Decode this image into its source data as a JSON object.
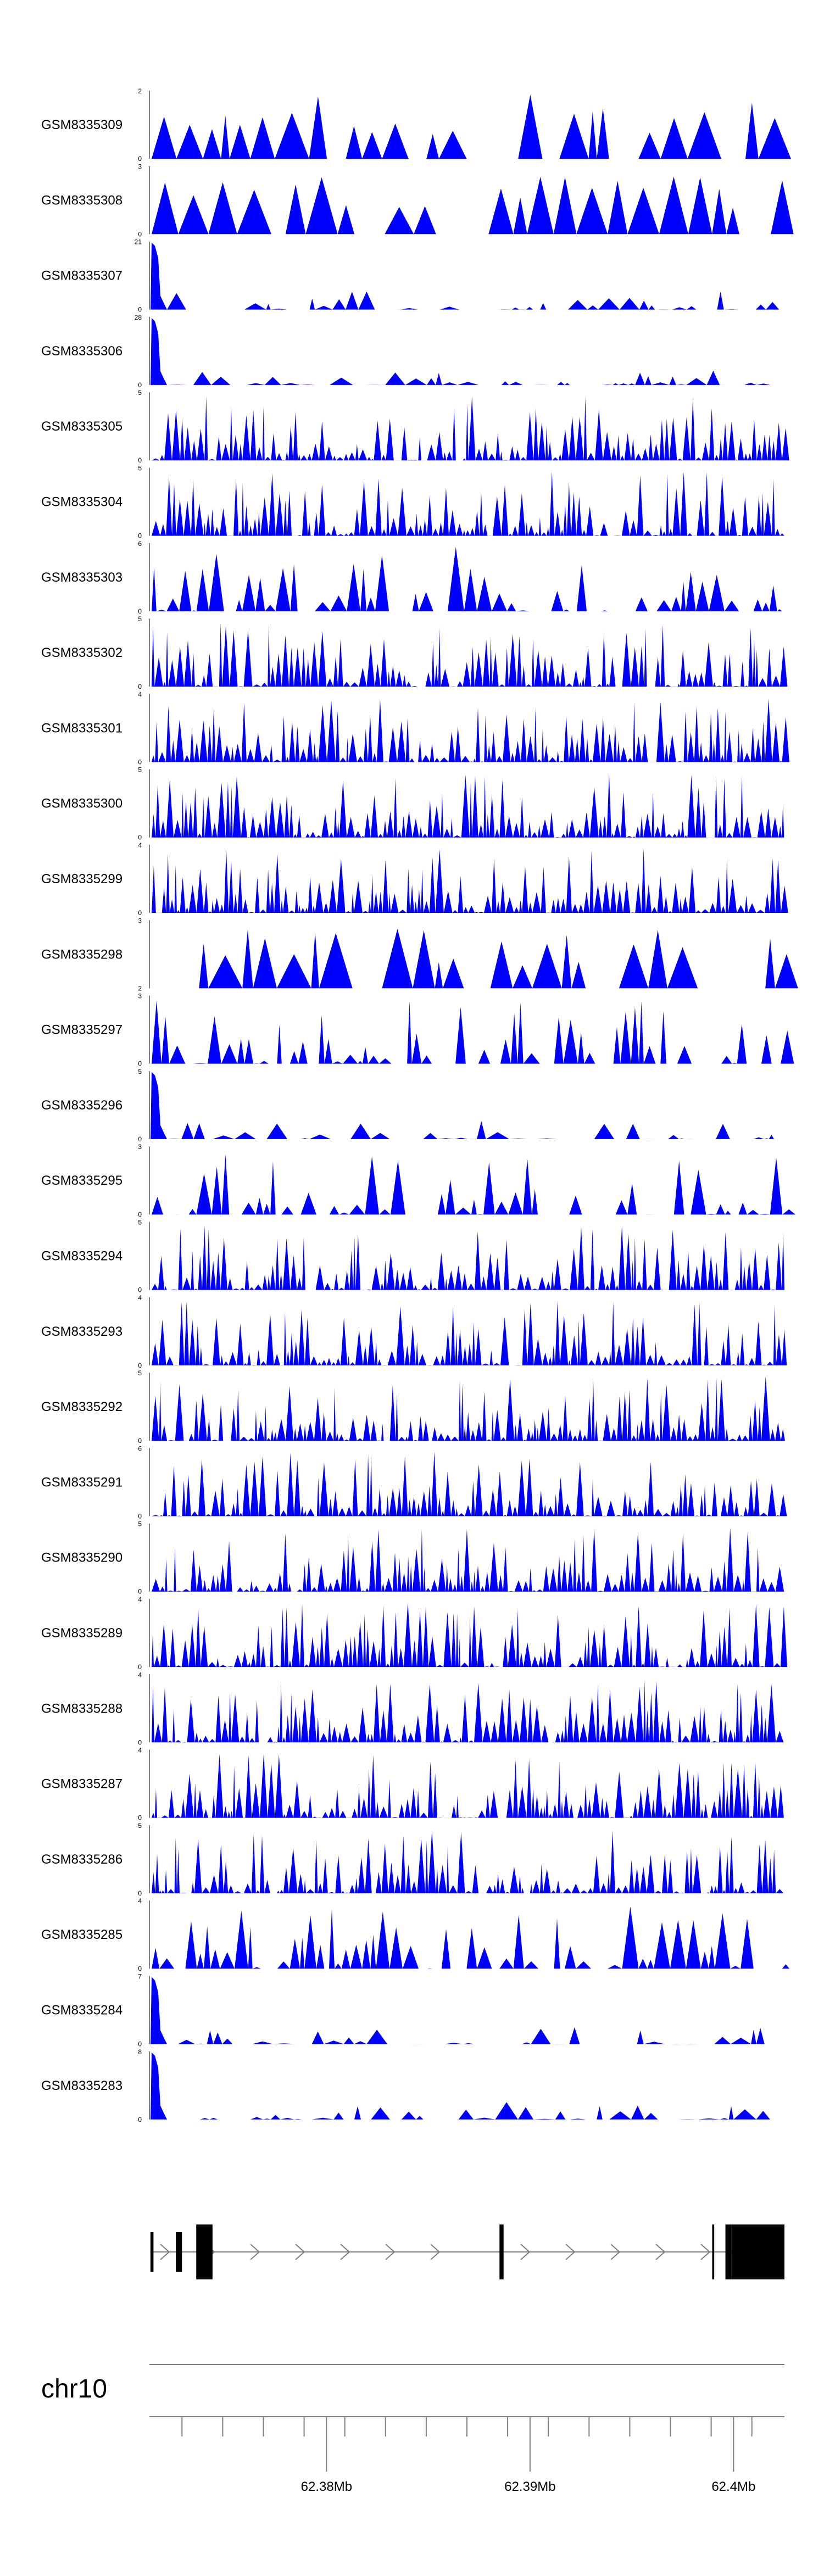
{
  "chart_data": {
    "type": "area",
    "title": "",
    "chromosome": "chr10",
    "xlim_mb": [
      62.3713,
      62.4025
    ],
    "fill_color": "#0000ff",
    "tracks": [
      {
        "name": "GSM8335309",
        "ymax": "2",
        "ymin": "0",
        "profile": "sparse"
      },
      {
        "name": "GSM8335308",
        "ymax": "3",
        "ymin": "0",
        "profile": "sparse"
      },
      {
        "name": "GSM8335307",
        "ymax": "21",
        "ymin": "0",
        "profile": "peak"
      },
      {
        "name": "GSM8335306",
        "ymax": "28",
        "ymin": "0",
        "profile": "peak"
      },
      {
        "name": "GSM8335305",
        "ymax": "5",
        "ymin": "0",
        "profile": "dense"
      },
      {
        "name": "GSM8335304",
        "ymax": "5",
        "ymin": "0",
        "profile": "dense"
      },
      {
        "name": "GSM8335303",
        "ymax": "6",
        "ymin": "0",
        "profile": "medium"
      },
      {
        "name": "GSM8335302",
        "ymax": "5",
        "ymin": "0",
        "profile": "dense"
      },
      {
        "name": "GSM8335301",
        "ymax": "4",
        "ymin": "0",
        "profile": "dense"
      },
      {
        "name": "GSM8335300",
        "ymax": "5",
        "ymin": "0",
        "profile": "dense"
      },
      {
        "name": "GSM8335299",
        "ymax": "4",
        "ymin": "0",
        "profile": "dense"
      },
      {
        "name": "GSM8335298",
        "ymax": "3",
        "ymin": "2",
        "profile": "sparse"
      },
      {
        "name": "GSM8335297",
        "ymax": "3",
        "ymin": "0",
        "profile": "medium"
      },
      {
        "name": "GSM8335296",
        "ymax": "5",
        "ymin": "0",
        "profile": "peak"
      },
      {
        "name": "GSM8335295",
        "ymax": "3",
        "ymin": "0",
        "profile": "medium"
      },
      {
        "name": "GSM8335294",
        "ymax": "5",
        "ymin": "0",
        "profile": "dense"
      },
      {
        "name": "GSM8335293",
        "ymax": "4",
        "ymin": "0",
        "profile": "dense"
      },
      {
        "name": "GSM8335292",
        "ymax": "5",
        "ymin": "0",
        "profile": "dense"
      },
      {
        "name": "GSM8335291",
        "ymax": "6",
        "ymin": "0",
        "profile": "dense"
      },
      {
        "name": "GSM8335290",
        "ymax": "5",
        "ymin": "0",
        "profile": "dense"
      },
      {
        "name": "GSM8335289",
        "ymax": "4",
        "ymin": "0",
        "profile": "dense"
      },
      {
        "name": "GSM8335288",
        "ymax": "4",
        "ymin": "0",
        "profile": "dense"
      },
      {
        "name": "GSM8335287",
        "ymax": "4",
        "ymin": "0",
        "profile": "dense"
      },
      {
        "name": "GSM8335286",
        "ymax": "5",
        "ymin": "0",
        "profile": "dense"
      },
      {
        "name": "GSM8335285",
        "ymax": "4",
        "ymin": "0",
        "profile": "medium"
      },
      {
        "name": "GSM8335284",
        "ymax": "7",
        "ymin": "0",
        "profile": "peak"
      },
      {
        "name": "GSM8335283",
        "ymax": "8",
        "ymin": "0",
        "profile": "peak"
      }
    ],
    "gene_model": {
      "strand": "+",
      "blocks_mb": [
        [
          62.37135,
          62.3715,
          "narrow"
        ],
        [
          62.3726,
          62.3729,
          "narrow"
        ],
        [
          62.3736,
          62.3744,
          "wide"
        ],
        [
          62.3885,
          62.3887,
          "wide"
        ],
        [
          62.39895,
          62.39905,
          "line"
        ],
        [
          62.3996,
          62.3999,
          "wide"
        ],
        [
          62.3999,
          62.4025,
          "wide"
        ]
      ]
    },
    "x_axis": {
      "ticks_mb": [
        62.3729,
        62.3749,
        62.3769,
        62.3789,
        62.3809,
        62.3829,
        62.3849,
        62.3869,
        62.3889,
        62.3909,
        62.3929,
        62.3949,
        62.3969,
        62.3989,
        62.4009,
        62.4029
      ],
      "major_ticks_mb": [
        62.38,
        62.39,
        62.4
      ],
      "major_labels": [
        "62.38Mb",
        "62.39Mb",
        "62.4Mb"
      ]
    }
  }
}
